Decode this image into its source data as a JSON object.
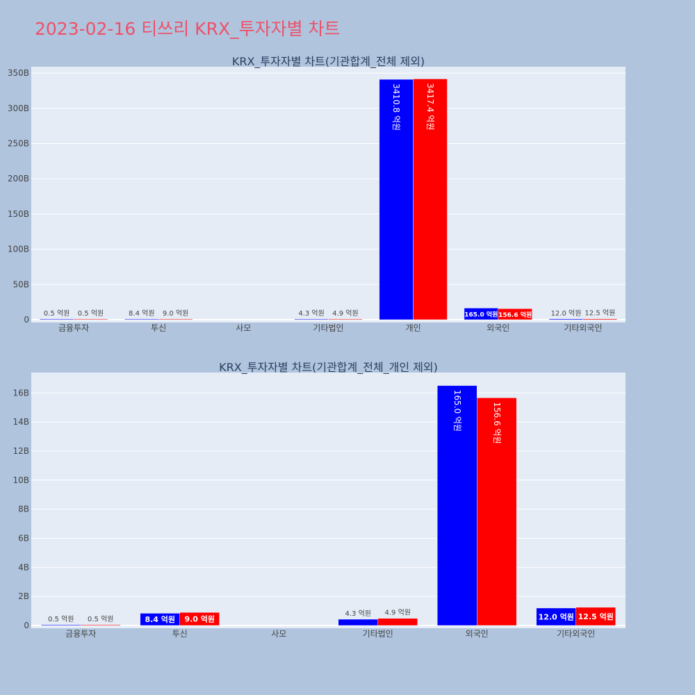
{
  "page": {
    "title": "2023-02-16 티쓰리 KRX_투자자별 차트"
  },
  "colors": {
    "buy": "#0000ff",
    "sell": "#ff0000",
    "plot_bg": "#e5ecf6",
    "page_bg": "#b0c4de",
    "title": "#ef5068"
  },
  "chart_data": [
    {
      "type": "bar",
      "title": "KRX_투자자별 차트(기관합계_전체 제외)",
      "categories": [
        "금융투자",
        "투신",
        "사모",
        "기타법인",
        "개인",
        "외국인",
        "기타외국인"
      ],
      "series": [
        {
          "values": [
            0.05,
            0.84,
            null,
            0.43,
            341.08,
            16.5,
            1.2
          ],
          "labels": [
            "0.5 억원",
            "8.4 억원",
            "",
            "4.3 억원",
            "3410.8 억원",
            "165.0 억원",
            "12.0 억원"
          ]
        },
        {
          "values": [
            0.05,
            0.9,
            null,
            0.49,
            341.74,
            15.66,
            1.25
          ],
          "labels": [
            "0.5 억원",
            "9.0 억원",
            "",
            "4.9 억원",
            "3417.4 억원",
            "156.6 억원",
            "12.5 억원"
          ]
        }
      ],
      "yticks": [
        "0",
        "50B",
        "100B",
        "150B",
        "200B",
        "250B",
        "300B",
        "350B"
      ],
      "ytick_values": [
        0,
        50,
        100,
        150,
        200,
        250,
        300,
        350
      ],
      "ylim": [
        0,
        359
      ],
      "grid": true
    },
    {
      "type": "bar",
      "title": "KRX_투자자별 차트(기관합계_전체_개인 제외)",
      "categories": [
        "금융투자",
        "투신",
        "사모",
        "기타법인",
        "외국인",
        "기타외국인"
      ],
      "series": [
        {
          "values": [
            0.05,
            0.84,
            null,
            0.43,
            16.5,
            1.2
          ],
          "labels": [
            "0.5 억원",
            "8.4 억원",
            "",
            "4.3 억원",
            "165.0 억원",
            "12.0 억원"
          ]
        },
        {
          "values": [
            0.05,
            0.9,
            null,
            0.49,
            15.66,
            1.25
          ],
          "labels": [
            "0.5 억원",
            "9.0 억원",
            "",
            "4.9 억원",
            "156.6 억원",
            "12.5 억원"
          ]
        }
      ],
      "yticks": [
        "0",
        "2B",
        "4B",
        "6B",
        "8B",
        "10B",
        "12B",
        "14B",
        "16B"
      ],
      "ytick_values": [
        0,
        2,
        4,
        6,
        8,
        10,
        12,
        14,
        16
      ],
      "ylim": [
        0,
        17.4
      ],
      "grid": true
    }
  ]
}
